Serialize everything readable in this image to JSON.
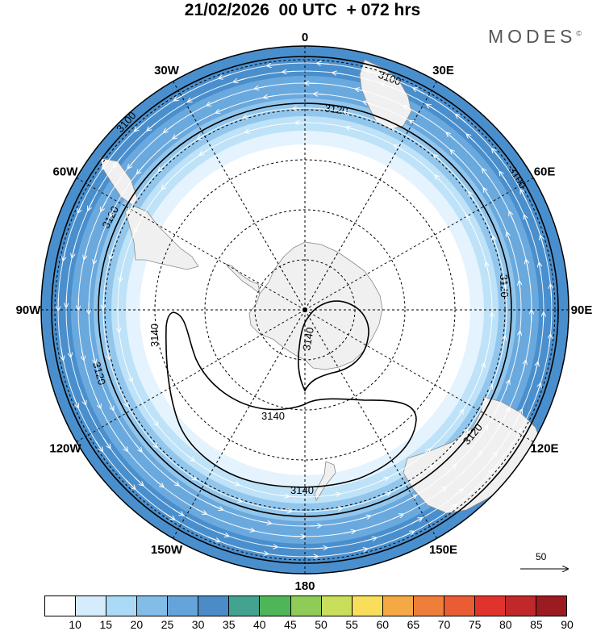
{
  "title": "21/02/2026  00 UTC  + 072 hrs",
  "brand": {
    "text": "MODES",
    "mark": "©"
  },
  "map": {
    "projection": "south-polar-stereographic",
    "background_colors": [
      "#4a8fcd",
      "#6aa9de",
      "#92c6ec",
      "#bee2f7",
      "#e4f3fd",
      "#ffffff"
    ],
    "land_color": "#f0f0f0",
    "longitude_labels": [
      {
        "lon": 0,
        "text": "0"
      },
      {
        "lon": 30,
        "text": "30E"
      },
      {
        "lon": 60,
        "text": "60E"
      },
      {
        "lon": 90,
        "text": "90E"
      },
      {
        "lon": 120,
        "text": "120E"
      },
      {
        "lon": 150,
        "text": "150E"
      },
      {
        "lon": 180,
        "text": "180"
      },
      {
        "lon": -150,
        "text": "150W"
      },
      {
        "lon": -120,
        "text": "120W"
      },
      {
        "lon": -90,
        "text": "90W"
      },
      {
        "lon": -60,
        "text": "60W"
      },
      {
        "lon": -30,
        "text": "30W"
      }
    ],
    "contour_labels": [
      "3100",
      "3100",
      "3100",
      "3120",
      "3120",
      "3120",
      "3120",
      "3120",
      "3140",
      "3140",
      "3140",
      "3140"
    ]
  },
  "colorbar": {
    "colors": [
      "#ffffff",
      "#d4ecfb",
      "#aadaf6",
      "#82bde7",
      "#65a4da",
      "#4a8bc8",
      "#44a291",
      "#4fb658",
      "#8fcc57",
      "#c9de5b",
      "#f9de5b",
      "#f4a944",
      "#ef7e3a",
      "#ea5c33",
      "#e1332d",
      "#c0282a",
      "#9b1c20"
    ],
    "labels": [
      "10",
      "15",
      "20",
      "25",
      "30",
      "35",
      "40",
      "45",
      "50",
      "55",
      "60",
      "65",
      "70",
      "75",
      "80",
      "85",
      "90"
    ]
  },
  "reference_vector": {
    "value": "50"
  }
}
